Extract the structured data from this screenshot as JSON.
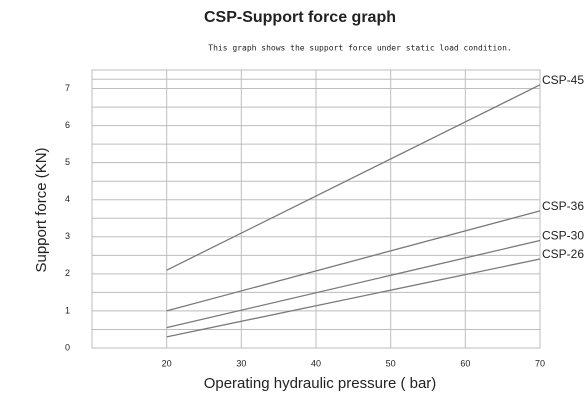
{
  "chart_data": {
    "type": "line",
    "title": "CSP-Support force graph",
    "subtitle": "This graph shows the support force under static load condition.",
    "x_label": "Operating hydraulic pressure ( bar)",
    "y_label": "Support force (KN)",
    "x": [
      20,
      70
    ],
    "series": [
      {
        "name": "CSP-45",
        "color": "#7a7a7a",
        "values": [
          2.1,
          7.1
        ]
      },
      {
        "name": "CSP-36",
        "color": "#7a7a7a",
        "values": [
          1.0,
          3.7
        ]
      },
      {
        "name": "CSP-30",
        "color": "#7a7a7a",
        "values": [
          0.55,
          2.9
        ]
      },
      {
        "name": "CSP-26",
        "color": "#7a7a7a",
        "values": [
          0.3,
          2.4
        ]
      }
    ],
    "xlim": [
      10,
      70
    ],
    "xticks": [
      20,
      30,
      40,
      50,
      60,
      70
    ],
    "ylim": [
      0,
      7.5
    ],
    "yticks": [
      0,
      1,
      2,
      3,
      4,
      5,
      6,
      7
    ],
    "grid": true
  }
}
